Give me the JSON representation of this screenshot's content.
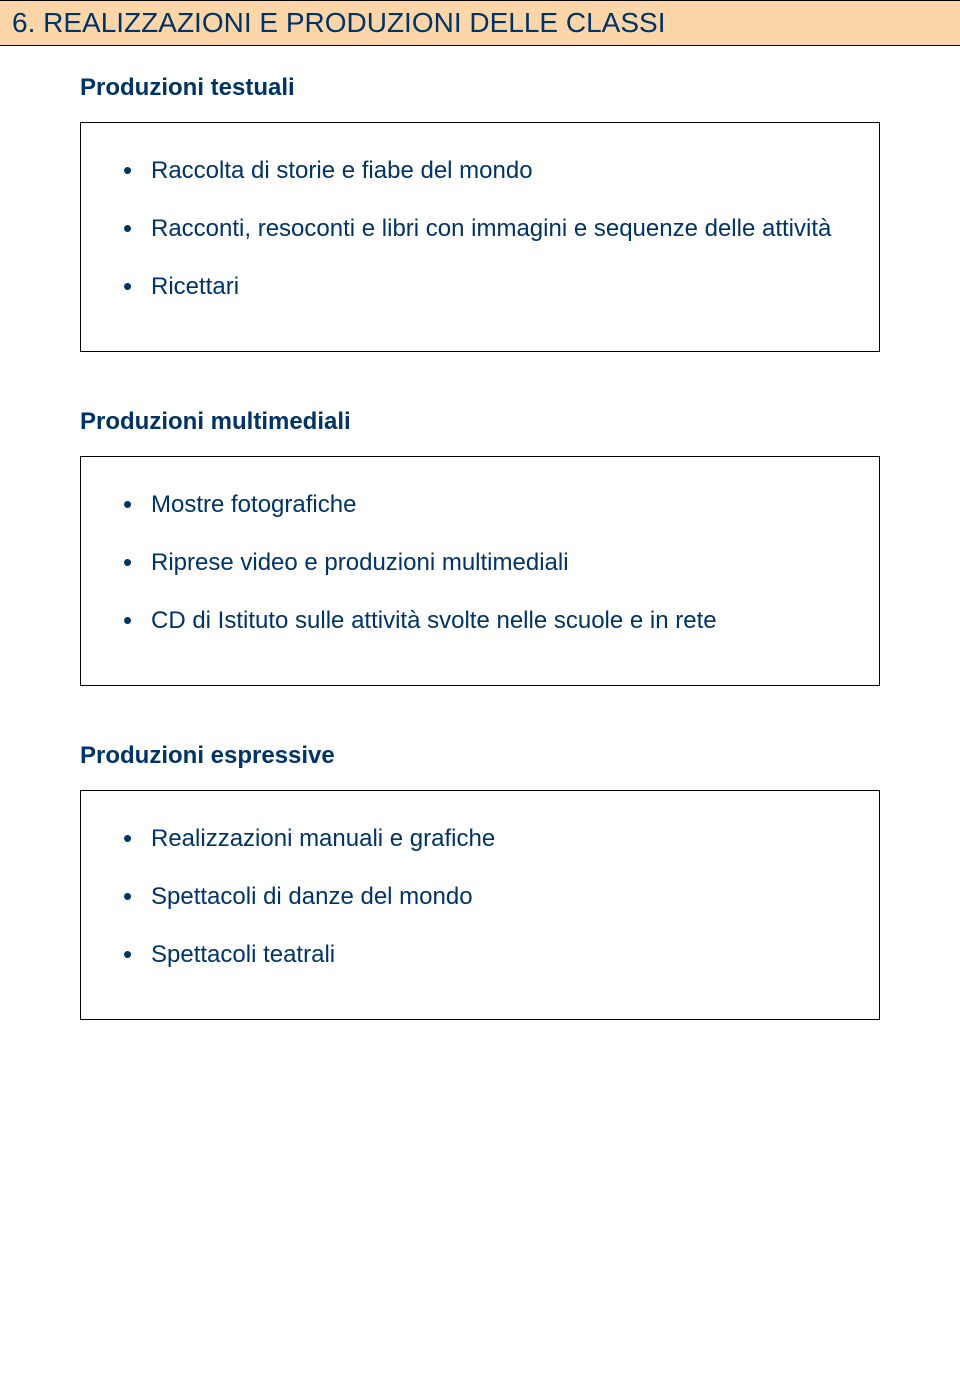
{
  "header": {
    "title": "6. REALIZZAZIONI E PRODUZIONI DELLE CLASSI",
    "background_color": "#fcd5a8",
    "text_color": "#003366"
  },
  "sections": [
    {
      "heading": "Produzioni testuali",
      "items": [
        "Raccolta di storie e fiabe del mondo",
        "Racconti, resoconti e libri con immagini e sequenze delle attività",
        "Ricettari"
      ]
    },
    {
      "heading": "Produzioni multimediali",
      "items": [
        "Mostre fotografiche",
        "Riprese video e produzioni multimediali",
        "CD di Istituto sulle attività svolte nelle scuole e in rete"
      ]
    },
    {
      "heading": "Produzioni espressive",
      "items": [
        "Realizzazioni manuali e grafiche",
        "Spettacoli di danze del mondo",
        "Spettacoli teatrali"
      ]
    }
  ],
  "colors": {
    "heading_text": "#003366",
    "body_text": "#003366",
    "box_border": "#000000",
    "page_bg": "#ffffff"
  }
}
